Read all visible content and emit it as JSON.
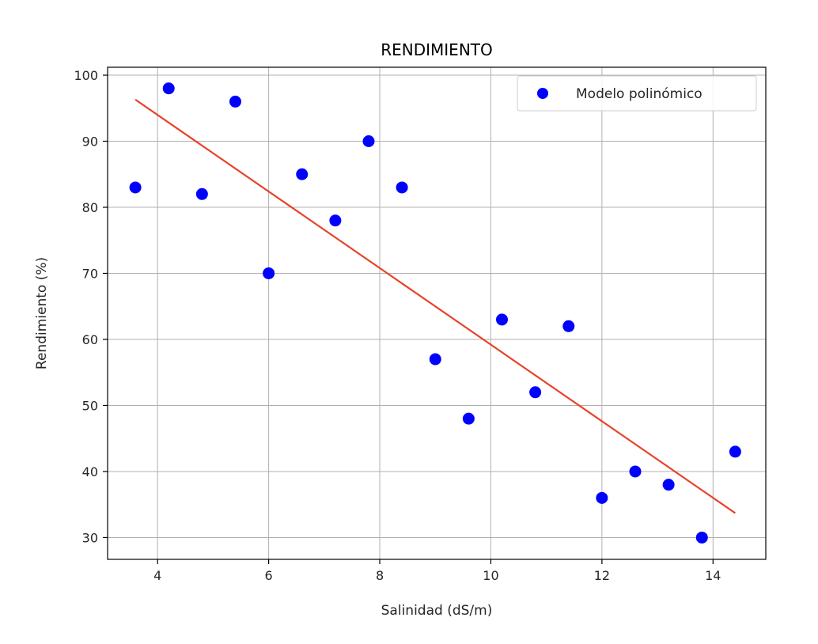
{
  "chart_data": {
    "type": "scatter",
    "title": "RENDIMIENTO",
    "xlabel": "Salinidad (dS/m)",
    "ylabel": "Rendimiento (%)",
    "xlim": [
      3.1,
      14.95
    ],
    "ylim": [
      26.7,
      101.2
    ],
    "xticks": [
      4,
      6,
      8,
      10,
      12,
      14
    ],
    "yticks": [
      30,
      40,
      50,
      60,
      70,
      80,
      90,
      100
    ],
    "grid": true,
    "legend_position": "top-right",
    "series": [
      {
        "name": "Modelo polinómico",
        "color": "#0000ff",
        "points": [
          [
            3.6,
            83
          ],
          [
            4.2,
            98
          ],
          [
            4.8,
            82
          ],
          [
            5.4,
            96
          ],
          [
            6.0,
            70
          ],
          [
            6.6,
            85
          ],
          [
            7.2,
            78
          ],
          [
            7.8,
            90
          ],
          [
            8.4,
            83
          ],
          [
            9.0,
            57
          ],
          [
            9.6,
            48
          ],
          [
            10.2,
            63
          ],
          [
            10.8,
            52
          ],
          [
            11.4,
            62
          ],
          [
            12.0,
            36
          ],
          [
            12.6,
            40
          ],
          [
            13.2,
            38
          ],
          [
            13.8,
            30
          ],
          [
            14.4,
            43
          ]
        ]
      }
    ],
    "fit_line": {
      "color": "#e8412c",
      "points": [
        [
          3.6,
          96.3
        ],
        [
          14.4,
          33.7
        ]
      ]
    }
  }
}
